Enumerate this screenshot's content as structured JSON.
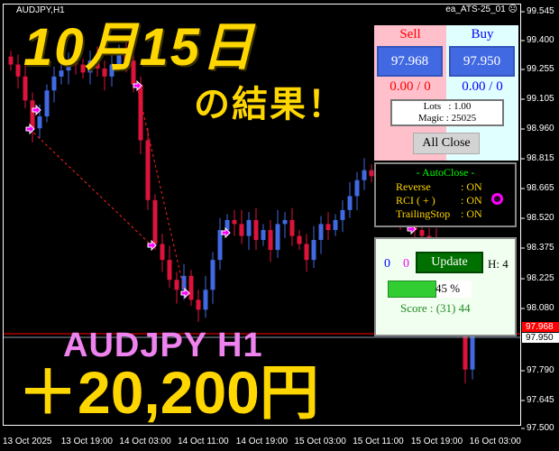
{
  "chart_header": {
    "symbol": "AUDJPY,H1",
    "ea_name": "ea_ATS-25_01",
    "ea_status_icon": "sad-face-icon"
  },
  "overlay": {
    "date_title": "10月15日",
    "result_label": "の結果！",
    "pair_label": "AUDJPY H1",
    "profit": "＋20,200円"
  },
  "price_axis": [
    "99.545",
    "99.400",
    "99.255",
    "99.105",
    "98.960",
    "98.815",
    "98.665",
    "98.520",
    "98.375",
    "98.225",
    "98.080",
    "97.790",
    "97.645",
    "97.500"
  ],
  "price_tags": {
    "ask": "97.968",
    "bid": "97.950"
  },
  "time_axis": [
    "13 Oct 2025",
    "13 Oct 19:00",
    "14 Oct 03:00",
    "14 Oct 11:00",
    "14 Oct 19:00",
    "15 Oct 03:00",
    "15 Oct 11:00",
    "15 Oct 19:00",
    "16 Oct 03:00"
  ],
  "colors": {
    "bull": "#4169e1",
    "bear": "#dc143c",
    "ask_line": "#ff0000",
    "bid_line": "#8899aa",
    "overlay_yellow": "#ffd700",
    "overlay_pink": "#ee82ee"
  },
  "chart_data": {
    "type": "candlestick",
    "start_open": 99.32,
    "closes": [
      99.28,
      99.22,
      99.1,
      98.96,
      99.02,
      99.15,
      99.22,
      99.25,
      99.3,
      99.28,
      99.24,
      99.3,
      99.26,
      99.22,
      99.28,
      99.35,
      99.3,
      99.18,
      98.9,
      98.6,
      98.38,
      98.3,
      98.2,
      98.15,
      98.22,
      98.1,
      98.05,
      98.15,
      98.3,
      98.45,
      98.5,
      98.48,
      98.42,
      98.5,
      98.4,
      98.45,
      98.35,
      98.48,
      98.5,
      98.42,
      98.38,
      98.3,
      98.4,
      98.48,
      98.45,
      98.5,
      98.55,
      98.62,
      98.7,
      98.75,
      98.72,
      98.68,
      98.6,
      98.55,
      98.5,
      98.48,
      98.45,
      98.42,
      98.4,
      98.3,
      98.2,
      98.1,
      97.95,
      97.75,
      97.95
    ],
    "ylim": [
      97.5,
      99.545
    ]
  },
  "trade_panel": {
    "sell_label": "Sell",
    "buy_label": "Buy",
    "sell_price": "97.968",
    "buy_price": "97.950",
    "sell_pl": "0.00 / 0",
    "buy_pl": "0.00 / 0",
    "lots": "Lots   : 1.00",
    "magic": "Magic : 25025",
    "all_close": "All Close"
  },
  "autoclose_panel": {
    "title": "- AutoClose -",
    "rows": [
      {
        "label": "Reverse",
        "value": ": ON"
      },
      {
        "label": "RCI  ( + )",
        "value": ": ON"
      },
      {
        "label": "TrailingStop",
        "value": ": ON"
      }
    ],
    "status_color": "#ff00ff"
  },
  "status_panel": {
    "count_blue": "0",
    "count_magenta": "0",
    "update": "Update",
    "h": "H: 4",
    "progress_percent": 45,
    "progress_label": "45 %",
    "score": "Score : (31) 44"
  }
}
